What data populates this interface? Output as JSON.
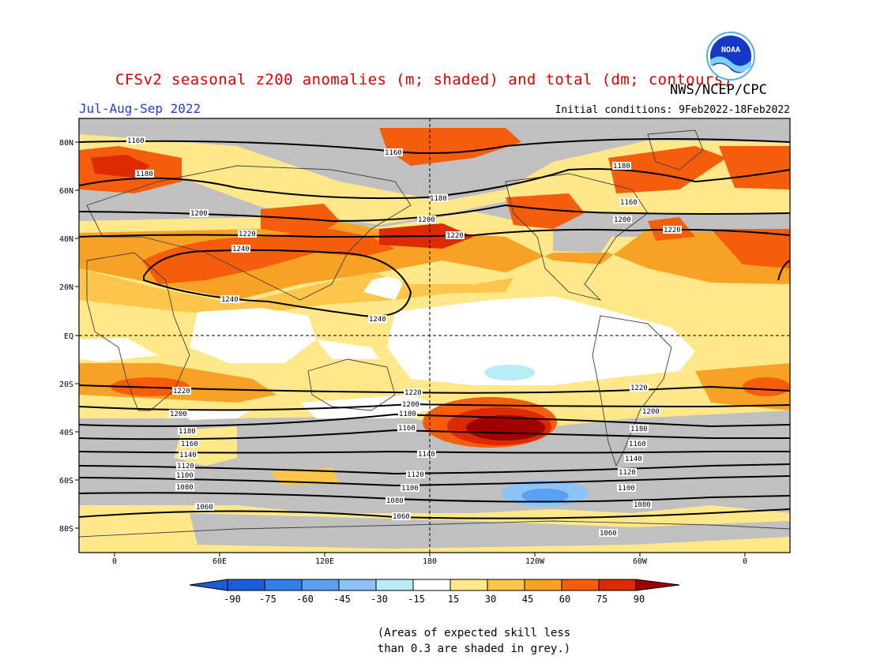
{
  "title": "CFSv2 seasonal z200 anomalies (m; shaded) and total (dm; contours)",
  "agency": "NWS/NCEP/CPC",
  "season": "Jul-Aug-Sep 2022",
  "initial_conditions": "Initial conditions: 9Feb2022-18Feb2022",
  "logo_text": "NOAA",
  "skill_note": "(Areas of expected skill less\nthan 0.3 are shaded in grey.)",
  "colors": {
    "title": "#e00000",
    "season": "#1f3fd8",
    "low_skill_grey": "#c0c0c0",
    "neg90": "#1a5fd9",
    "neg75": "#2f7fe6",
    "neg60": "#5aa0f0",
    "neg45": "#8cc4f8",
    "neg30": "#b8ecf5",
    "neutral": "#ffffff",
    "pos15": "#ffe88a",
    "pos30": "#fcc64a",
    "pos45": "#f7a125",
    "pos60": "#f35d0b",
    "pos75": "#dc2a04",
    "pos90": "#a00000"
  },
  "map": {
    "lat_labels": [
      "80N",
      "60N",
      "40N",
      "20N",
      "EQ",
      "20S",
      "40S",
      "60S",
      "80S"
    ],
    "lon_labels": [
      "0",
      "60E",
      "120E",
      "180",
      "120W",
      "60W",
      "0"
    ],
    "contour_labels": [
      "1160",
      "1180",
      "1200",
      "1220",
      "1240",
      "1240",
      "1240",
      "1160",
      "1180",
      "1200",
      "1220",
      "1180",
      "1160",
      "1180",
      "1200",
      "1220",
      "1220",
      "1200",
      "1180",
      "1160",
      "1140",
      "1120",
      "1100",
      "1080",
      "1060",
      "1220",
      "1200",
      "1180",
      "1160",
      "1140",
      "1120",
      "1100",
      "1080",
      "1060",
      "1220",
      "1200",
      "1180",
      "1160",
      "1140",
      "1120",
      "1100",
      "1080",
      "1060"
    ]
  },
  "colorbar": {
    "labels": [
      "-90",
      "-75",
      "-60",
      "-45",
      "-30",
      "-15",
      "15",
      "30",
      "45",
      "60",
      "75",
      "90"
    ]
  }
}
